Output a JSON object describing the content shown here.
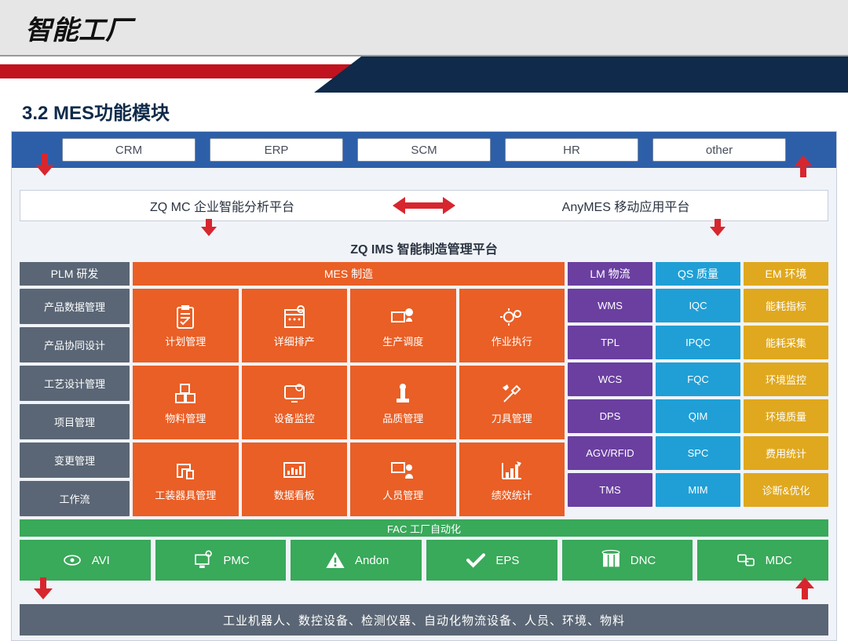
{
  "colors": {
    "header_bg": "#e6e6e6",
    "red": "#c1121f",
    "navy": "#0f2a4a",
    "top_bar": "#2d5fa8",
    "arrow_red": "#d7262e",
    "plm": "#5a6675",
    "mes": "#e95f26",
    "lm": "#6a3fa0",
    "qs": "#1f9fd6",
    "em": "#e0a81e",
    "fac": "#39a95a",
    "bottom": "#5a6675"
  },
  "title": "智能工厂",
  "subtitle": "3.2 MES功能模块",
  "top_systems": [
    "CRM",
    "ERP",
    "SCM",
    "HR",
    "other"
  ],
  "platform_left": "ZQ MC 企业智能分析平台",
  "platform_right": "AnyMES 移动应用平台",
  "ims_title": "ZQ IMS 智能制造管理平台",
  "plm": {
    "header": "PLM 研发",
    "items": [
      "产品数据管理",
      "产品协同设计",
      "工艺设计管理",
      "项目管理",
      "变更管理",
      "工作流"
    ]
  },
  "mes": {
    "header": "MES 制造",
    "rows": [
      [
        {
          "icon": "clipboard",
          "label": "计划管理"
        },
        {
          "icon": "calendar",
          "label": "详细排产"
        },
        {
          "icon": "dispatch",
          "label": "生产调度"
        },
        {
          "icon": "gears",
          "label": "作业执行"
        }
      ],
      [
        {
          "icon": "boxes",
          "label": "物料管理"
        },
        {
          "icon": "monitor",
          "label": "设备监控"
        },
        {
          "icon": "stamp",
          "label": "品质管理"
        },
        {
          "icon": "tools",
          "label": "刀具管理"
        }
      ],
      [
        {
          "icon": "fixture",
          "label": "工装器具管理"
        },
        {
          "icon": "board",
          "label": "数据看板"
        },
        {
          "icon": "people",
          "label": "人员管理"
        },
        {
          "icon": "chart",
          "label": "绩效统计"
        }
      ]
    ]
  },
  "lm": {
    "header": "LM 物流",
    "items": [
      "WMS",
      "TPL",
      "WCS",
      "DPS",
      "AGV/RFID",
      "TMS"
    ]
  },
  "qs": {
    "header": "QS 质量",
    "items": [
      "IQC",
      "IPQC",
      "FQC",
      "QIM",
      "SPC",
      "MIM"
    ]
  },
  "em": {
    "header": "EM 环境",
    "items": [
      "能耗指标",
      "能耗采集",
      "环境监控",
      "环境质量",
      "费用统计",
      "诊断&优化"
    ]
  },
  "fac": {
    "header": "FAC 工厂自动化",
    "items": [
      {
        "icon": "eye",
        "label": "AVI"
      },
      {
        "icon": "pmc",
        "label": "PMC"
      },
      {
        "icon": "warn",
        "label": "Andon"
      },
      {
        "icon": "check",
        "label": "EPS"
      },
      {
        "icon": "servers",
        "label": "DNC"
      },
      {
        "icon": "link",
        "label": "MDC"
      }
    ]
  },
  "bottom_text": "工业机器人、数控设备、检测仪器、自动化物流设备、人员、环境、物料"
}
